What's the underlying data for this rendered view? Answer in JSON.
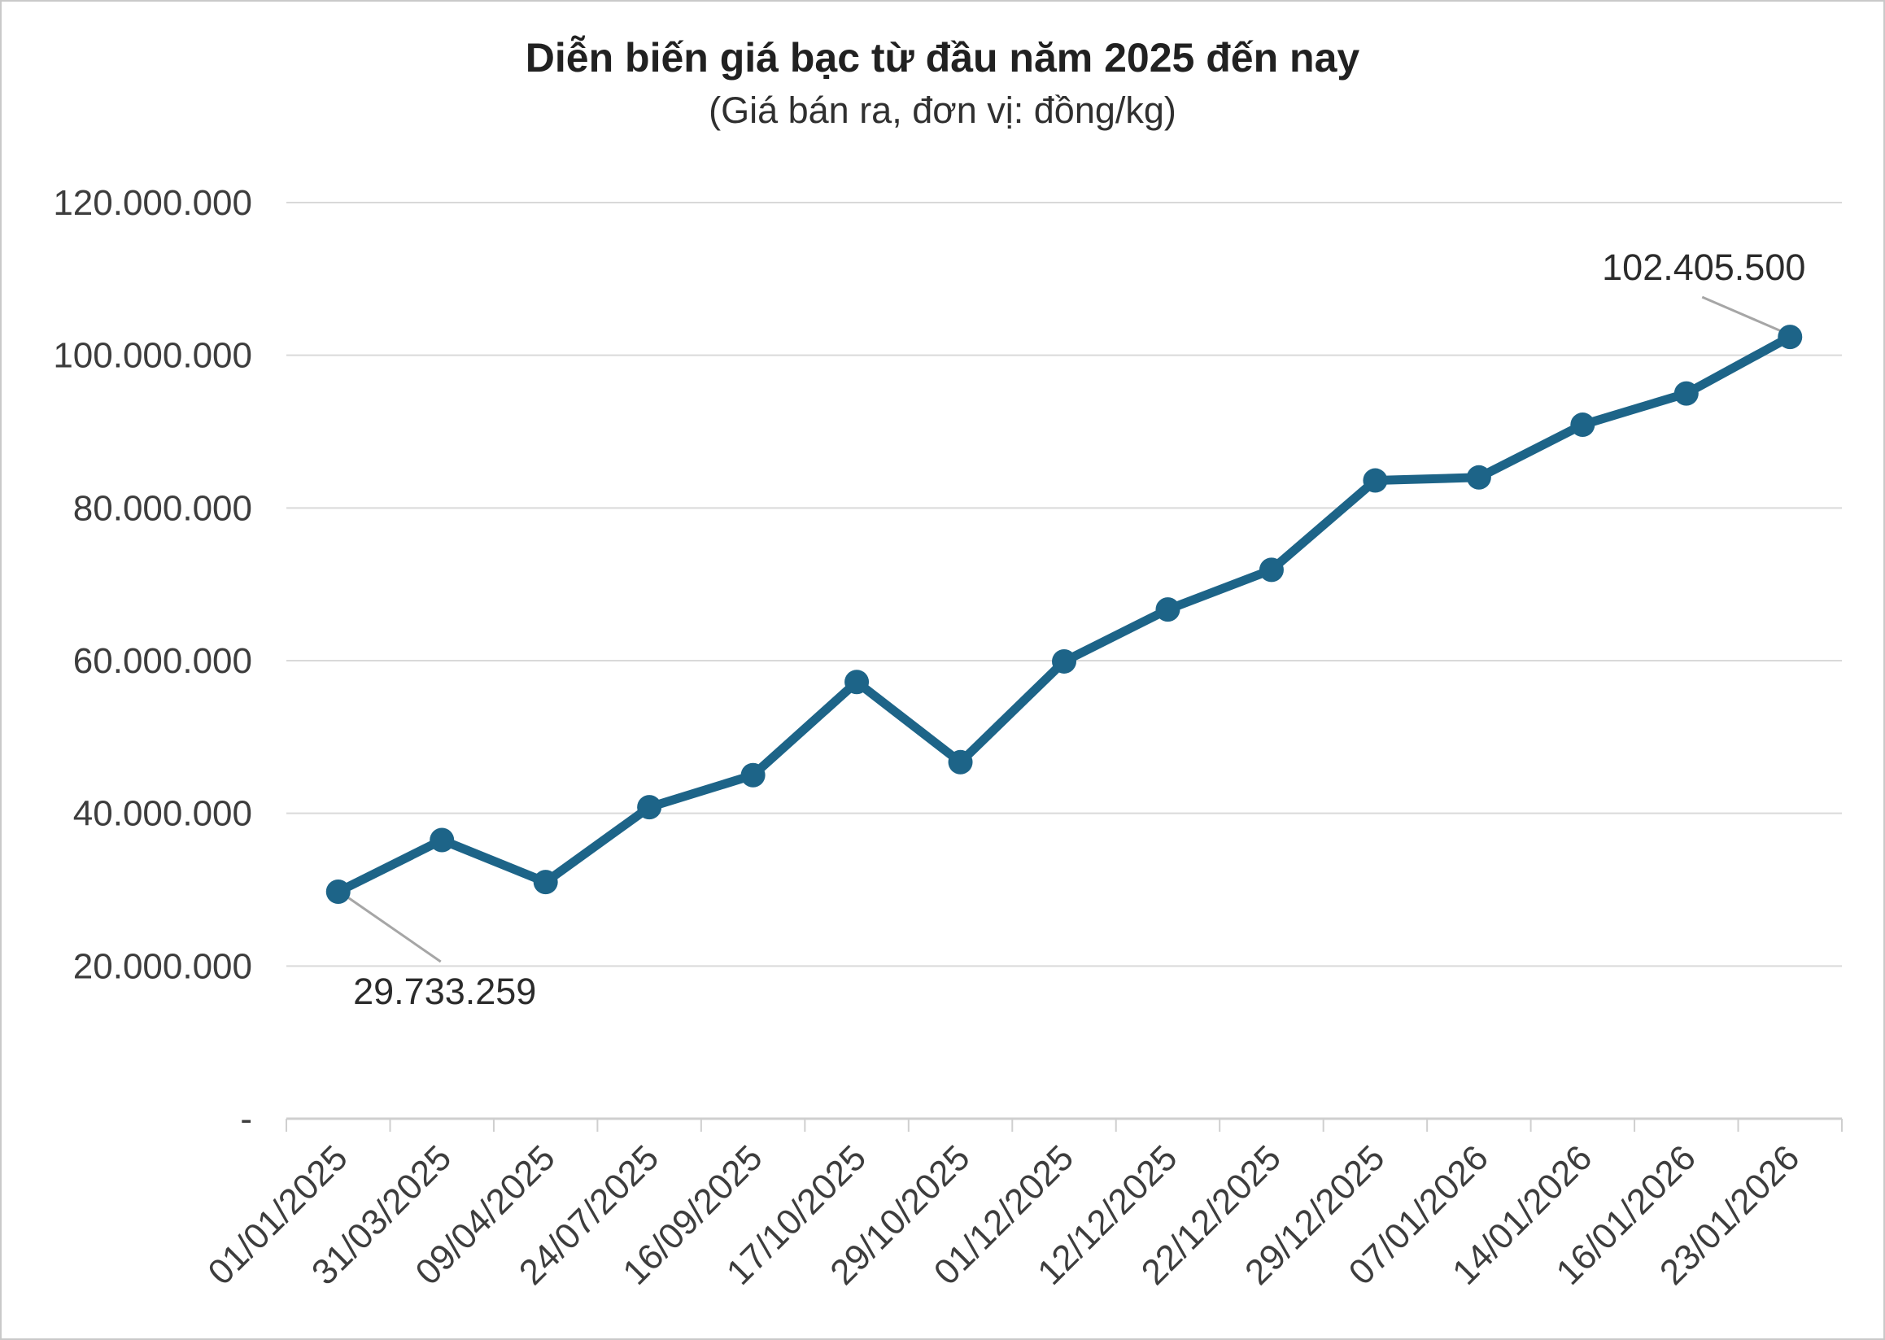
{
  "title": "Diễn biến giá bạc từ đầu năm 2025 đến nay",
  "subtitle": "(Giá bán ra, đơn vị: đồng/kg)",
  "chart_data": {
    "type": "line",
    "title": "Diễn biến giá bạc từ đầu năm 2025 đến nay",
    "subtitle": "(Giá bán ra, đơn vị: đồng/kg)",
    "categories": [
      "01/01/2025",
      "31/03/2025",
      "09/04/2025",
      "24/07/2025",
      "16/09/2025",
      "17/10/2025",
      "29/10/2025",
      "01/12/2025",
      "12/12/2025",
      "22/12/2025",
      "29/12/2025",
      "07/01/2026",
      "14/01/2026",
      "16/01/2026",
      "23/01/2026"
    ],
    "values": [
      29733259,
      36500000,
      31000000,
      40800000,
      45000000,
      57200000,
      46700000,
      59900000,
      66700000,
      71900000,
      83600000,
      84000000,
      90900000,
      95000000,
      102405500
    ],
    "ylim": [
      0,
      120000000
    ],
    "grid": true,
    "legend": "none",
    "y_ticks": [
      {
        "value": 120000000,
        "label": "120.000.000"
      },
      {
        "value": 100000000,
        "label": "100.000.000"
      },
      {
        "value": 80000000,
        "label": "80.000.000"
      },
      {
        "value": 60000000,
        "label": "60.000.000"
      },
      {
        "value": 40000000,
        "label": "40.000.000"
      },
      {
        "value": 20000000,
        "label": "20.000.000"
      },
      {
        "value": 0,
        "label": "-"
      }
    ],
    "annotations": [
      {
        "index": 0,
        "label": "29.733.259"
      },
      {
        "index": 14,
        "label": "102.405.500"
      }
    ],
    "colors": {
      "line": "#1D6488",
      "marker": "#1D6488",
      "gridline": "#D9D9D9",
      "axis": "#CFCFCF",
      "leader": "#A6A6A6",
      "tick_text": "#3D3D3D",
      "annotation_text": "#2B2B2B",
      "title_text": "#212121",
      "background": "#FFFFFF"
    }
  }
}
